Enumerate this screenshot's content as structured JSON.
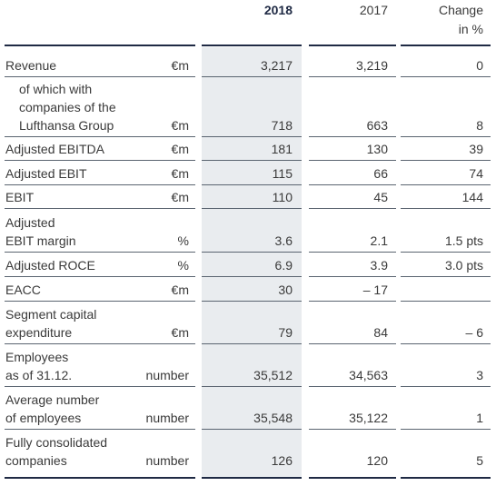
{
  "header": {
    "y2018": "2018",
    "y2017": "2017",
    "change": [
      "Change",
      "in %"
    ]
  },
  "rows": [
    {
      "label": [
        "Revenue"
      ],
      "unit": "€m",
      "y2018": "3,217",
      "y2017": "3,219",
      "change": "0"
    },
    {
      "label": [
        "of which with",
        "companies of the",
        "Lufthansa Group"
      ],
      "unit": "€m",
      "y2018": "718",
      "y2017": "663",
      "change": "8"
    },
    {
      "label": [
        "Adjusted EBITDA"
      ],
      "unit": "€m",
      "y2018": "181",
      "y2017": "130",
      "change": "39"
    },
    {
      "label": [
        "Adjusted EBIT"
      ],
      "unit": "€m",
      "y2018": "115",
      "y2017": "66",
      "change": "74"
    },
    {
      "label": [
        "EBIT"
      ],
      "unit": "€m",
      "y2018": "110",
      "y2017": "45",
      "change": "144"
    },
    {
      "label": [
        "Adjusted",
        "EBIT margin"
      ],
      "unit": "%",
      "y2018": "3.6",
      "y2017": "2.1",
      "change": "1.5 pts"
    },
    {
      "label": [
        "Adjusted ROCE"
      ],
      "unit": "%",
      "y2018": "6.9",
      "y2017": "3.9",
      "change": "3.0 pts"
    },
    {
      "label": [
        "EACC"
      ],
      "unit": "€m",
      "y2018": "30",
      "y2017": "– 17"
    },
    {
      "label": [
        "Segment capital",
        "expenditure"
      ],
      "unit": "€m",
      "y2018": "79",
      "y2017": "84",
      "change": "– 6"
    },
    {
      "label": [
        "Employees",
        "as of 31.12."
      ],
      "unit": "number",
      "y2018": "35,512",
      "y2017": "34,563",
      "change": "3"
    },
    {
      "label": [
        "Average number",
        "of employees"
      ],
      "unit": "number",
      "y2018": "35,548",
      "y2017": "35,122",
      "change": "1"
    },
    {
      "label": [
        "Fully consolidated",
        "companies"
      ],
      "unit": "number",
      "y2018": "126",
      "y2017": "120",
      "change": "5"
    }
  ]
}
